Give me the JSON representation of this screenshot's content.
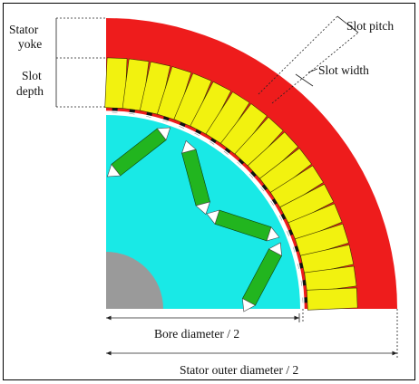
{
  "labels": {
    "stator_yoke_line1": "Stator",
    "stator_yoke_line2": "yoke",
    "slot_depth_line1": "Slot",
    "slot_depth_line2": "depth",
    "slot_pitch": "Slot pitch",
    "slot_width": "Slot width",
    "bore_diameter": "Bore diameter / 2",
    "stator_outer_diameter": "Stator outer diameter / 2"
  },
  "colors": {
    "stator": "#ee1c1c",
    "slot": "#f2f20f",
    "rotor": "#19e9e6",
    "magnet": "#22b51f",
    "magnet_tip": "#ffffff",
    "shaft": "#9a9a9a",
    "tooth_tip": "#111111"
  },
  "slot_count": 18,
  "magnet_count": 4
}
